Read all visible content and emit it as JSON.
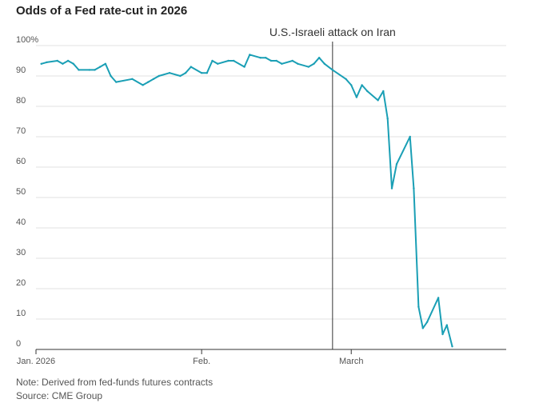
{
  "chart_data": {
    "type": "line",
    "title": "Odds of a Fed rate-cut in 2026",
    "xlabel": "",
    "ylabel": "",
    "ylim": [
      0,
      100
    ],
    "y_ticks": [
      {
        "value": 0,
        "label": "0"
      },
      {
        "value": 10,
        "label": "10"
      },
      {
        "value": 20,
        "label": "20"
      },
      {
        "value": 30,
        "label": "30"
      },
      {
        "value": 40,
        "label": "40"
      },
      {
        "value": 50,
        "label": "50"
      },
      {
        "value": 60,
        "label": "60"
      },
      {
        "value": 70,
        "label": "70"
      },
      {
        "value": 80,
        "label": "80"
      },
      {
        "value": 90,
        "label": "90"
      },
      {
        "value": 100,
        "label": "100%"
      }
    ],
    "x_ticks": [
      {
        "day": 1,
        "label": "Jan. 2026"
      },
      {
        "day": 32,
        "label": "Feb."
      },
      {
        "day": 60,
        "label": "March"
      }
    ],
    "x_range": [
      1,
      89
    ],
    "annotation": {
      "day": 56.5,
      "label": "U.S.-Israeli attack on Iran"
    },
    "series": [
      {
        "name": "Odds of a Fed rate-cut in 2026",
        "color": "#1a9fb5",
        "x": [
          2,
          3,
          5,
          6,
          7,
          8,
          9,
          11,
          12,
          13,
          14,
          15,
          16,
          19,
          21,
          22,
          23,
          24,
          26,
          28,
          29,
          30,
          32,
          33,
          34,
          35,
          37,
          38,
          40,
          41,
          43,
          44,
          45,
          46,
          47,
          49,
          50,
          52,
          53,
          54,
          55,
          56.5,
          59,
          60,
          61,
          62,
          63,
          65,
          66,
          66.8,
          67.6,
          68.5,
          71,
          71.7,
          72.6,
          73.4,
          74.2,
          76.3,
          77.1,
          77.9,
          78.9
        ],
        "values": [
          94,
          94.5,
          95,
          94,
          95,
          94,
          92,
          92,
          92,
          93,
          94,
          90,
          88,
          89,
          87,
          88,
          89,
          90,
          91,
          90,
          91,
          93,
          91,
          91,
          95,
          94,
          95,
          95,
          93,
          97,
          96,
          96,
          95,
          95,
          94,
          95,
          94,
          93,
          94,
          96,
          94,
          92,
          89,
          87,
          83,
          87,
          85,
          82,
          85,
          76,
          53,
          61,
          70,
          53,
          14,
          7,
          9,
          17,
          5,
          8,
          1
        ]
      }
    ]
  },
  "footer": {
    "note": "Note: Derived from fed-funds futures contracts",
    "source": "Source: CME Group"
  },
  "colors": {
    "line": "#1a9fb5",
    "grid": "#e0e0e0",
    "axis_text": "#555555",
    "annotation_line": "#333333"
  }
}
